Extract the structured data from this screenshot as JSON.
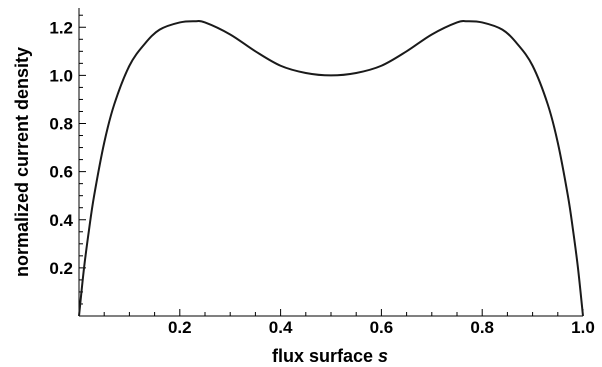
{
  "chart_data": {
    "type": "line",
    "title": "",
    "xlabel": "flux surface ",
    "xlabel_var": "s",
    "ylabel": "normalized current density",
    "xlim": [
      0.0,
      1.0
    ],
    "ylim": [
      0.0,
      1.28
    ],
    "xticks": [
      0.2,
      0.4,
      0.6,
      0.8,
      1.0
    ],
    "xtick_labels": [
      "0.2",
      "0.4",
      "0.6",
      "0.8",
      "1.0"
    ],
    "yticks": [
      0.2,
      0.4,
      0.6,
      0.8,
      1.0,
      1.2
    ],
    "ytick_labels": [
      "0.2",
      "0.4",
      "0.6",
      "0.8",
      "1.0",
      "1.2"
    ],
    "grid": false,
    "line_color": "#1a1a1a",
    "series": [
      {
        "x": [
          0.0,
          0.01,
          0.02,
          0.03,
          0.05,
          0.07,
          0.1,
          0.13,
          0.16,
          0.2,
          0.23,
          0.25,
          0.3,
          0.35,
          0.4,
          0.45,
          0.5,
          0.55,
          0.6,
          0.65,
          0.7,
          0.75,
          0.77,
          0.8,
          0.84,
          0.87,
          0.9,
          0.93,
          0.95,
          0.97,
          0.98,
          0.99,
          1.0
        ],
        "y": [
          0.0,
          0.2,
          0.36,
          0.5,
          0.72,
          0.88,
          1.04,
          1.13,
          1.19,
          1.22,
          1.225,
          1.22,
          1.17,
          1.1,
          1.04,
          1.01,
          1.0,
          1.01,
          1.04,
          1.1,
          1.17,
          1.22,
          1.225,
          1.22,
          1.19,
          1.13,
          1.04,
          0.88,
          0.72,
          0.5,
          0.36,
          0.2,
          0.0
        ]
      }
    ]
  }
}
